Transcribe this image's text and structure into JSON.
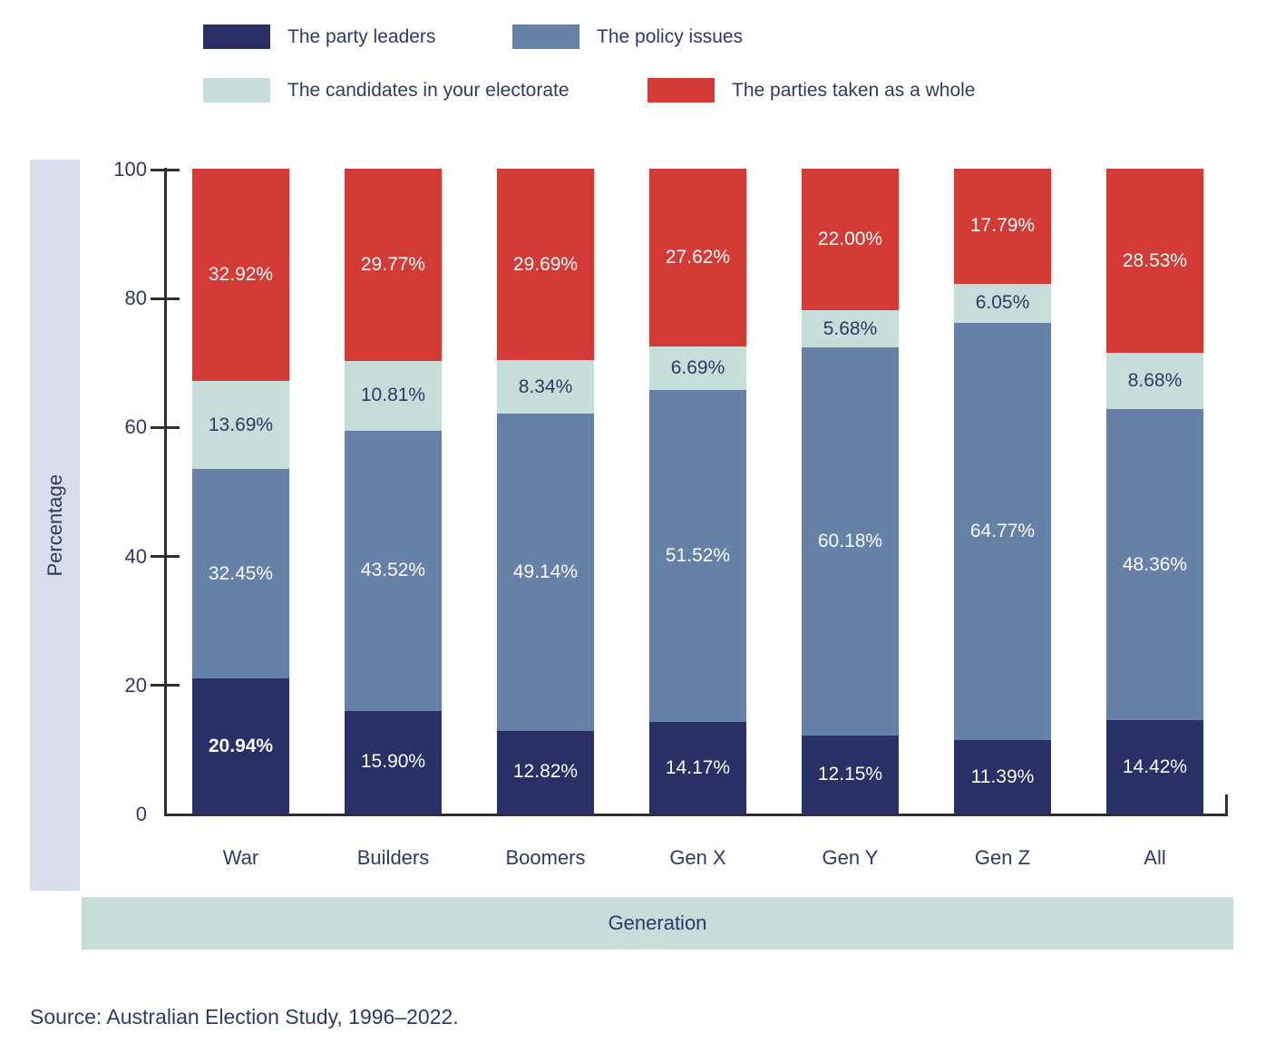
{
  "legend": {
    "items": [
      {
        "label": "The party leaders",
        "color": "#283065"
      },
      {
        "label": "The policy issues",
        "color": "#6581a7"
      },
      {
        "label": "The candidates in your electorate",
        "color": "#c7ddd9"
      },
      {
        "label": "The parties taken as a whole",
        "color": "#d33b36"
      }
    ]
  },
  "y_axis": {
    "title": "Percentage",
    "ticks": [
      0,
      20,
      40,
      60,
      80,
      100
    ],
    "band_color": "#d9dcea"
  },
  "x_axis": {
    "title": "Generation",
    "band_color": "#c7ddd9"
  },
  "axis_color": "#2f2f2f",
  "text_color": "#2e3a69",
  "source": "Source: Australian Election Study, 1996–2022.",
  "chart_data": {
    "type": "bar",
    "stacked": true,
    "title": "",
    "xlabel": "Generation",
    "ylabel": "Percentage",
    "ylim": [
      0,
      100
    ],
    "grid": false,
    "legend_position": "top",
    "value_suffix": "%",
    "value_decimals": 2,
    "categories": [
      "War",
      "Builders",
      "Boomers",
      "Gen X",
      "Gen Y",
      "Gen Z",
      "All"
    ],
    "series": [
      {
        "name": "The party leaders",
        "color": "#283065",
        "label_color": "#fbfbfb",
        "values": [
          20.94,
          15.9,
          12.82,
          14.17,
          12.15,
          11.39,
          14.42
        ]
      },
      {
        "name": "The policy issues",
        "color": "#6581a7",
        "label_color": "#fbfbfb",
        "values": [
          32.45,
          43.52,
          49.14,
          51.52,
          60.18,
          64.77,
          48.36
        ]
      },
      {
        "name": "The candidates in your electorate",
        "color": "#c7ddd9",
        "label_color": "#2e3a69",
        "values": [
          13.69,
          10.81,
          8.34,
          6.69,
          5.68,
          6.05,
          8.68
        ]
      },
      {
        "name": "The parties taken as a whole",
        "color": "#d33b36",
        "label_color": "#fbfbfb",
        "values": [
          32.92,
          29.77,
          29.69,
          27.62,
          22.0,
          17.79,
          28.53
        ]
      }
    ]
  }
}
